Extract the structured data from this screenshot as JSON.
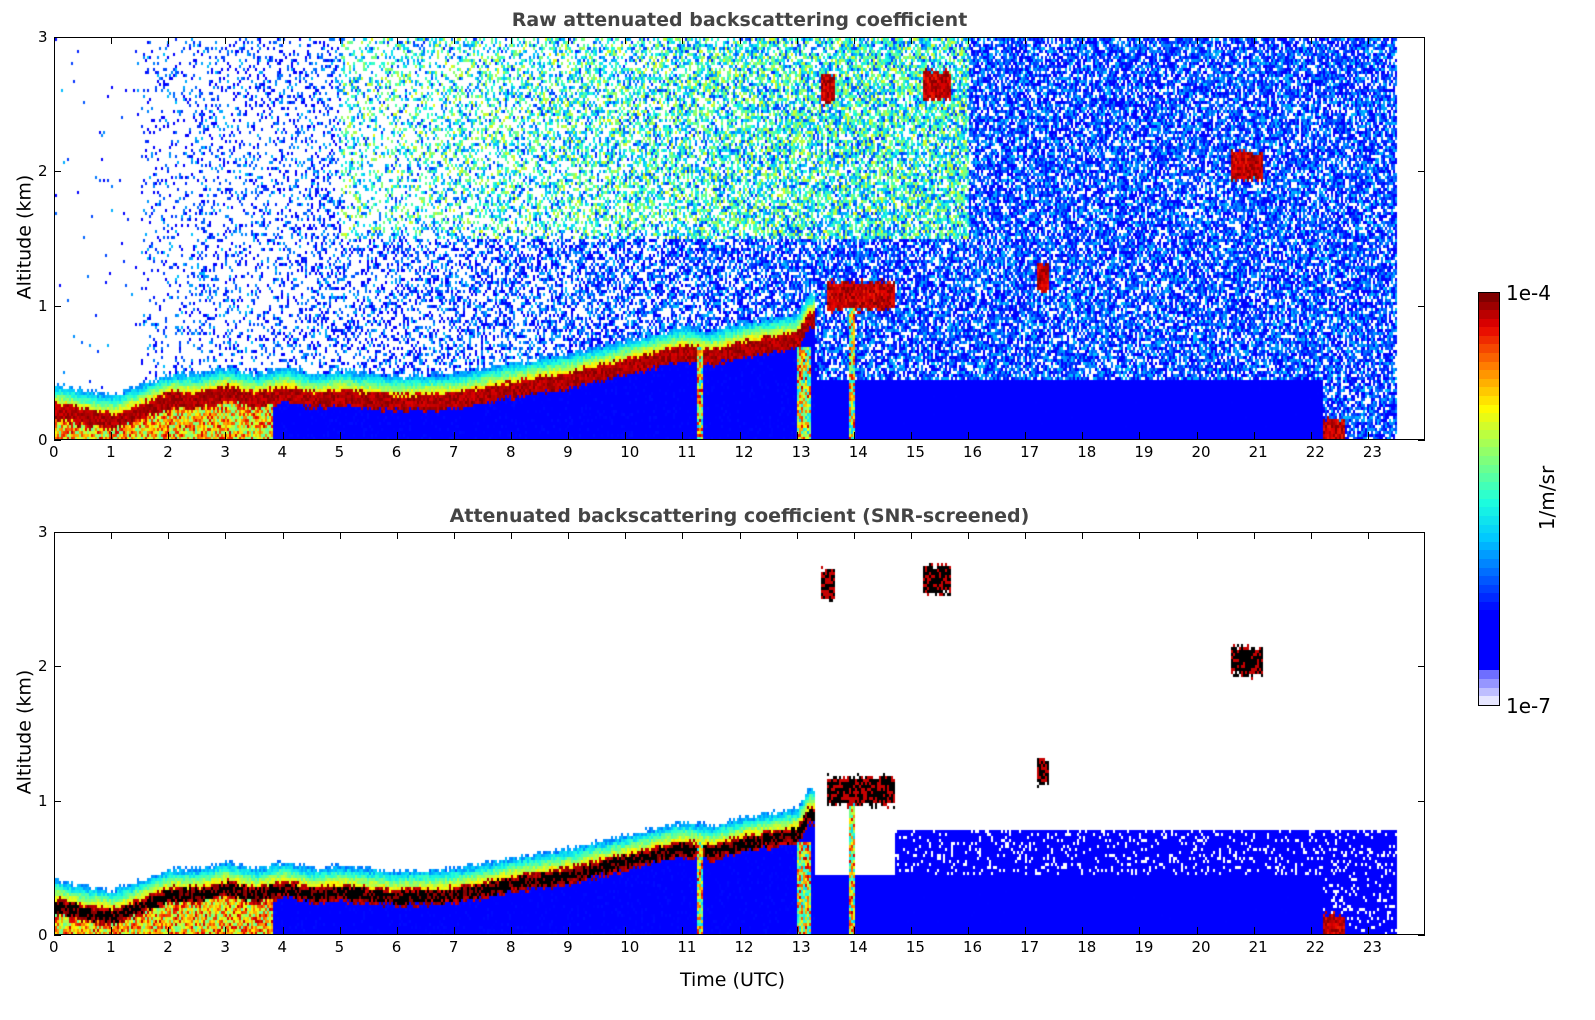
{
  "chart_data": [
    {
      "type": "heatmap",
      "title": "Raw attenuated backscattering coefficient",
      "xlabel": "",
      "ylabel": "Altitude (km)",
      "xlim": [
        0,
        24
      ],
      "ylim": [
        0,
        3
      ],
      "xticks": [
        0,
        1,
        2,
        3,
        4,
        5,
        6,
        7,
        8,
        9,
        10,
        11,
        12,
        13,
        14,
        15,
        16,
        17,
        18,
        19,
        20,
        21,
        22,
        23
      ],
      "yticks": [
        0,
        1,
        2,
        3
      ],
      "screened": false
    },
    {
      "type": "heatmap",
      "title": "Attenuated backscattering coefficient (SNR-screened)",
      "xlabel": "Time (UTC)",
      "ylabel": "Altitude (km)",
      "xlim": [
        0,
        24
      ],
      "ylim": [
        0,
        3
      ],
      "xticks": [
        0,
        1,
        2,
        3,
        4,
        5,
        6,
        7,
        8,
        9,
        10,
        11,
        12,
        13,
        14,
        15,
        16,
        17,
        18,
        19,
        20,
        21,
        22,
        23
      ],
      "yticks": [
        0,
        1,
        2,
        3
      ],
      "screened": true
    }
  ],
  "features": {
    "aerosol_layer_center_km": [
      [
        0,
        0.22
      ],
      [
        0.5,
        0.17
      ],
      [
        1,
        0.14
      ],
      [
        1.4,
        0.2
      ],
      [
        2,
        0.3
      ],
      [
        2.5,
        0.3
      ],
      [
        3,
        0.35
      ],
      [
        3.5,
        0.3
      ],
      [
        4,
        0.35
      ],
      [
        4.5,
        0.3
      ],
      [
        5,
        0.32
      ],
      [
        5.5,
        0.3
      ],
      [
        6,
        0.28
      ],
      [
        7,
        0.3
      ],
      [
        8,
        0.38
      ],
      [
        9,
        0.45
      ],
      [
        10,
        0.55
      ],
      [
        11,
        0.65
      ],
      [
        11.5,
        0.62
      ],
      [
        12,
        0.68
      ],
      [
        13,
        0.75
      ],
      [
        13.2,
        0.9
      ]
    ],
    "clouds": [
      {
        "t0": 13.4,
        "t1": 13.65,
        "h": 2.63
      },
      {
        "t0": 15.2,
        "t1": 15.7,
        "h": 2.66
      },
      {
        "t0": 20.6,
        "t1": 21.15,
        "h": 2.05
      },
      {
        "t0": 13.5,
        "t1": 14.7,
        "h": 1.08
      },
      {
        "t0": 17.2,
        "t1": 17.4,
        "h": 1.22
      },
      {
        "t0": 22.2,
        "t1": 22.6,
        "h": 0.05
      }
    ],
    "columns": [
      [
        11.25,
        11.35
      ],
      [
        13.0,
        13.25
      ],
      [
        13.9,
        14.0
      ]
    ],
    "data_end_hr": 23.5
  },
  "colorbar": {
    "label": "1/m/sr",
    "max_label": "1e-4",
    "min_label": "1e-7",
    "range_log10": [
      -7,
      -4
    ]
  }
}
